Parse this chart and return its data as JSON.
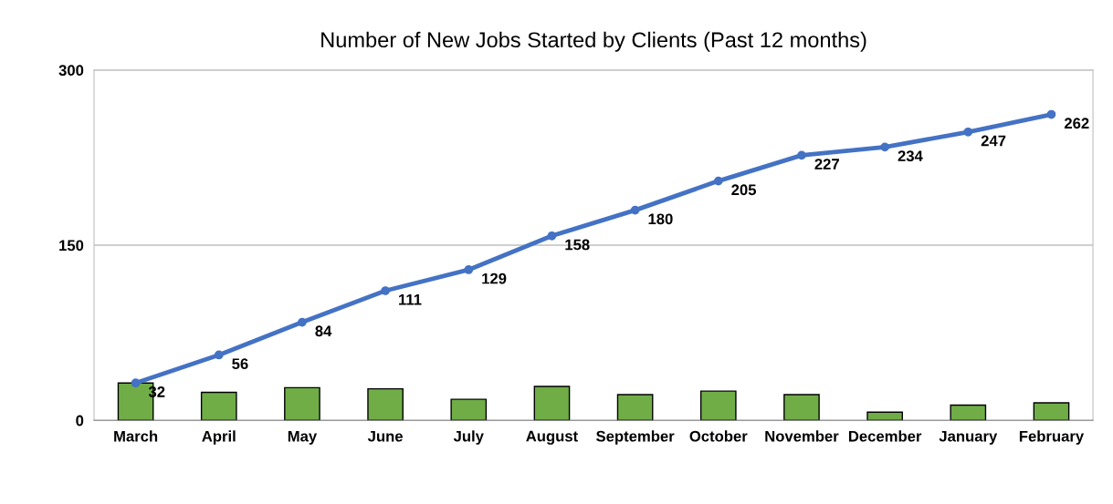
{
  "chart_data": {
    "type": "line",
    "title": "Number of New Jobs Started by Clients (Past 12 months)",
    "categories": [
      "March",
      "April",
      "May",
      "June",
      "July",
      "August",
      "September",
      "October",
      "November",
      "December",
      "January",
      "February"
    ],
    "series": [
      {
        "type": "bar",
        "color": "#70ad47",
        "values": [
          32,
          24,
          28,
          27,
          18,
          29,
          22,
          25,
          22,
          7,
          13,
          15
        ]
      },
      {
        "color": "#4472c4",
        "values": [
          32,
          56,
          84,
          111,
          129,
          158,
          180,
          205,
          227,
          234,
          247,
          262
        ],
        "value_labels": [
          "32",
          "56",
          "84",
          "111",
          "129",
          "158",
          "180",
          "205",
          "227",
          "234",
          "247",
          "262"
        ],
        "marker": "circle",
        "line_style": "solid"
      }
    ],
    "ylim": [
      0,
      300
    ],
    "yticks": [
      0,
      150,
      300
    ],
    "grid": "y"
  }
}
